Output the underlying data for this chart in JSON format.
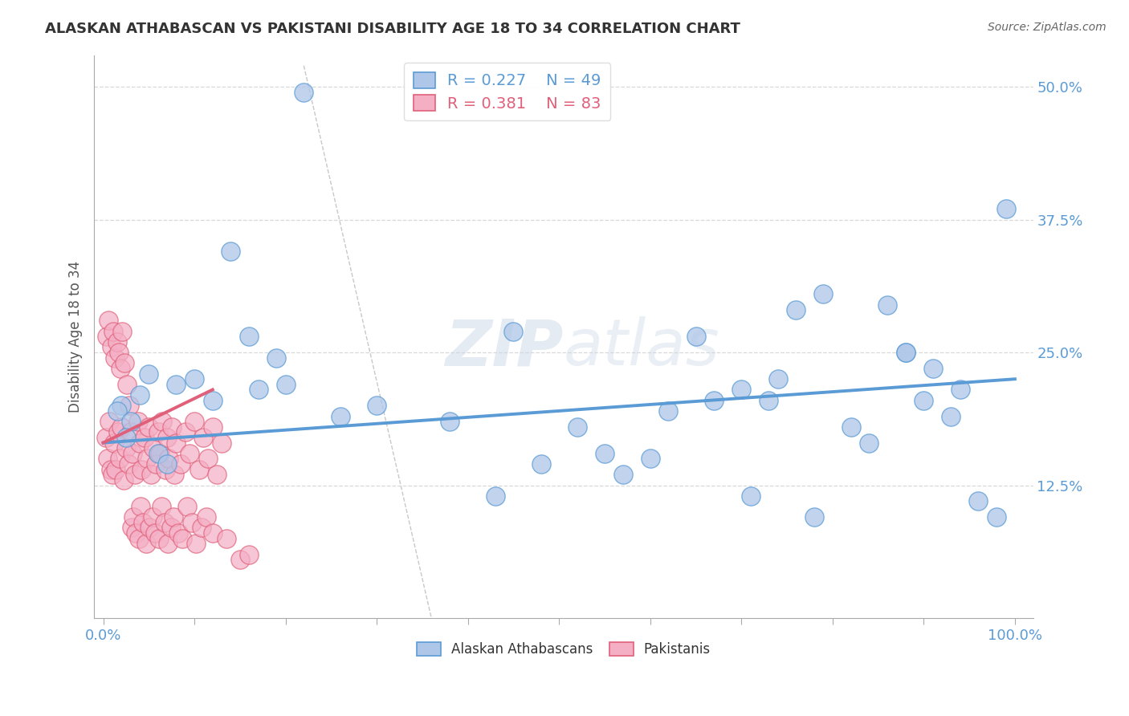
{
  "title": "ALASKAN ATHABASCAN VS PAKISTANI DISABILITY AGE 18 TO 34 CORRELATION CHART",
  "source": "Source: ZipAtlas.com",
  "ylabel_label": "Disability Age 18 to 34",
  "x_tick_labels": [
    "0.0%",
    "",
    "",
    "",
    "",
    "",
    "",
    "",
    "",
    "",
    "100.0%"
  ],
  "x_tick_positions": [
    0.0,
    10.0,
    20.0,
    30.0,
    40.0,
    50.0,
    60.0,
    70.0,
    80.0,
    90.0,
    100.0
  ],
  "y_tick_labels": [
    "12.5%",
    "25.0%",
    "37.5%",
    "50.0%"
  ],
  "y_tick_positions": [
    12.5,
    25.0,
    37.5,
    50.0
  ],
  "xlim": [
    -1.0,
    102.0
  ],
  "ylim": [
    0.0,
    53.0
  ],
  "blue_R": 0.227,
  "blue_N": 49,
  "pink_R": 0.381,
  "pink_N": 83,
  "blue_color": "#aec6e8",
  "pink_color": "#f4afc5",
  "blue_line_color": "#5b9bd5",
  "pink_line_color": "#e0607a",
  "background_color": "#ffffff",
  "grid_color": "#d8d8d8",
  "legend_label_blue": "Alaskan Athabascans",
  "legend_label_pink": "Pakistanis",
  "blue_line_x0": 0.0,
  "blue_line_y0": 16.5,
  "blue_line_x1": 100.0,
  "blue_line_y1": 22.5,
  "pink_line_x0": 0.0,
  "pink_line_y0": 16.5,
  "pink_line_x1": 12.0,
  "pink_line_y1": 21.5,
  "diag_line_x0": 22.0,
  "diag_line_y0": 52.0,
  "diag_line_x1": 36.0,
  "diag_line_y1": 0.0,
  "blue_scatter_x": [
    22.0,
    14.0,
    16.0,
    19.0,
    5.0,
    8.0,
    4.0,
    2.0,
    1.5,
    3.0,
    2.5,
    6.0,
    7.0,
    10.0,
    12.0,
    45.0,
    52.0,
    62.0,
    65.0,
    70.0,
    73.0,
    76.0,
    79.0,
    82.0,
    86.0,
    88.0,
    91.0,
    93.0,
    96.0,
    98.0,
    55.0,
    48.0,
    38.0,
    30.0,
    26.0,
    20.0,
    17.0,
    60.0,
    67.0,
    74.0,
    84.0,
    90.0,
    94.0,
    99.0,
    43.0,
    57.0,
    78.0,
    88.0,
    71.0
  ],
  "blue_scatter_y": [
    49.5,
    34.5,
    26.5,
    24.5,
    23.0,
    22.0,
    21.0,
    20.0,
    19.5,
    18.5,
    17.0,
    15.5,
    14.5,
    22.5,
    20.5,
    27.0,
    18.0,
    19.5,
    26.5,
    21.5,
    20.5,
    29.0,
    30.5,
    18.0,
    29.5,
    25.0,
    23.5,
    19.0,
    11.0,
    9.5,
    15.5,
    14.5,
    18.5,
    20.0,
    19.0,
    22.0,
    21.5,
    15.0,
    20.5,
    22.5,
    16.5,
    20.5,
    21.5,
    38.5,
    11.5,
    13.5,
    9.5,
    25.0,
    11.5
  ],
  "pink_scatter_x": [
    0.3,
    0.5,
    0.7,
    0.8,
    1.0,
    1.2,
    1.4,
    1.6,
    1.8,
    2.0,
    2.2,
    2.5,
    2.8,
    3.0,
    3.2,
    3.5,
    3.8,
    4.0,
    4.2,
    4.5,
    4.8,
    5.0,
    5.2,
    5.5,
    5.8,
    6.0,
    6.2,
    6.5,
    6.8,
    7.0,
    7.2,
    7.5,
    7.8,
    8.0,
    8.5,
    9.0,
    9.5,
    10.0,
    10.5,
    11.0,
    11.5,
    12.0,
    12.5,
    13.0,
    0.4,
    0.6,
    0.9,
    1.1,
    1.3,
    1.5,
    1.7,
    1.9,
    2.1,
    2.3,
    2.6,
    2.9,
    3.1,
    3.3,
    3.6,
    3.9,
    4.1,
    4.4,
    4.7,
    5.1,
    5.4,
    5.7,
    6.1,
    6.4,
    6.7,
    7.1,
    7.4,
    7.7,
    8.2,
    8.7,
    9.2,
    9.7,
    10.2,
    10.8,
    11.3,
    12.0,
    13.5,
    15.0,
    16.0
  ],
  "pink_scatter_y": [
    17.0,
    15.0,
    18.5,
    14.0,
    13.5,
    16.5,
    14.0,
    17.5,
    15.0,
    18.0,
    13.0,
    16.0,
    14.5,
    17.5,
    15.5,
    13.5,
    18.5,
    16.5,
    14.0,
    17.0,
    15.0,
    18.0,
    13.5,
    16.0,
    14.5,
    17.5,
    15.5,
    18.5,
    14.0,
    17.0,
    15.0,
    18.0,
    13.5,
    16.5,
    14.5,
    17.5,
    15.5,
    18.5,
    14.0,
    17.0,
    15.0,
    18.0,
    13.5,
    16.5,
    26.5,
    28.0,
    25.5,
    27.0,
    24.5,
    26.0,
    25.0,
    23.5,
    27.0,
    24.0,
    22.0,
    20.0,
    8.5,
    9.5,
    8.0,
    7.5,
    10.5,
    9.0,
    7.0,
    8.5,
    9.5,
    8.0,
    7.5,
    10.5,
    9.0,
    7.0,
    8.5,
    9.5,
    8.0,
    7.5,
    10.5,
    9.0,
    7.0,
    8.5,
    9.5,
    8.0,
    7.5,
    5.5,
    6.0
  ]
}
